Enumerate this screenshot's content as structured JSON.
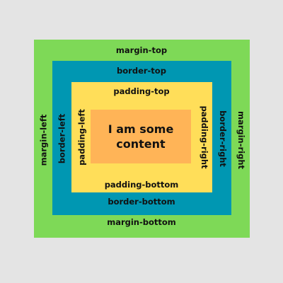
{
  "page": {
    "background": "#e4e4e4"
  },
  "boxes": {
    "margin": {
      "color": "#7ed957"
    },
    "border": {
      "color": "#0097b2"
    },
    "padding": {
      "color": "#ffde59"
    },
    "content": {
      "color": "#ffb457"
    }
  },
  "labels": {
    "margin_top": "margin-top",
    "margin_bottom": "margin-bottom",
    "margin_left": "margin-left",
    "margin_right": "margin-right",
    "border_top": "border-top",
    "border_bottom": "border-bottom",
    "border_left": "border-left",
    "border_right": "border-right",
    "padding_top": "padding-top",
    "padding_bottom": "padding-bottom",
    "padding_left": "padding-left",
    "padding_right": "padding-right",
    "content": "I am some\ncontent"
  }
}
